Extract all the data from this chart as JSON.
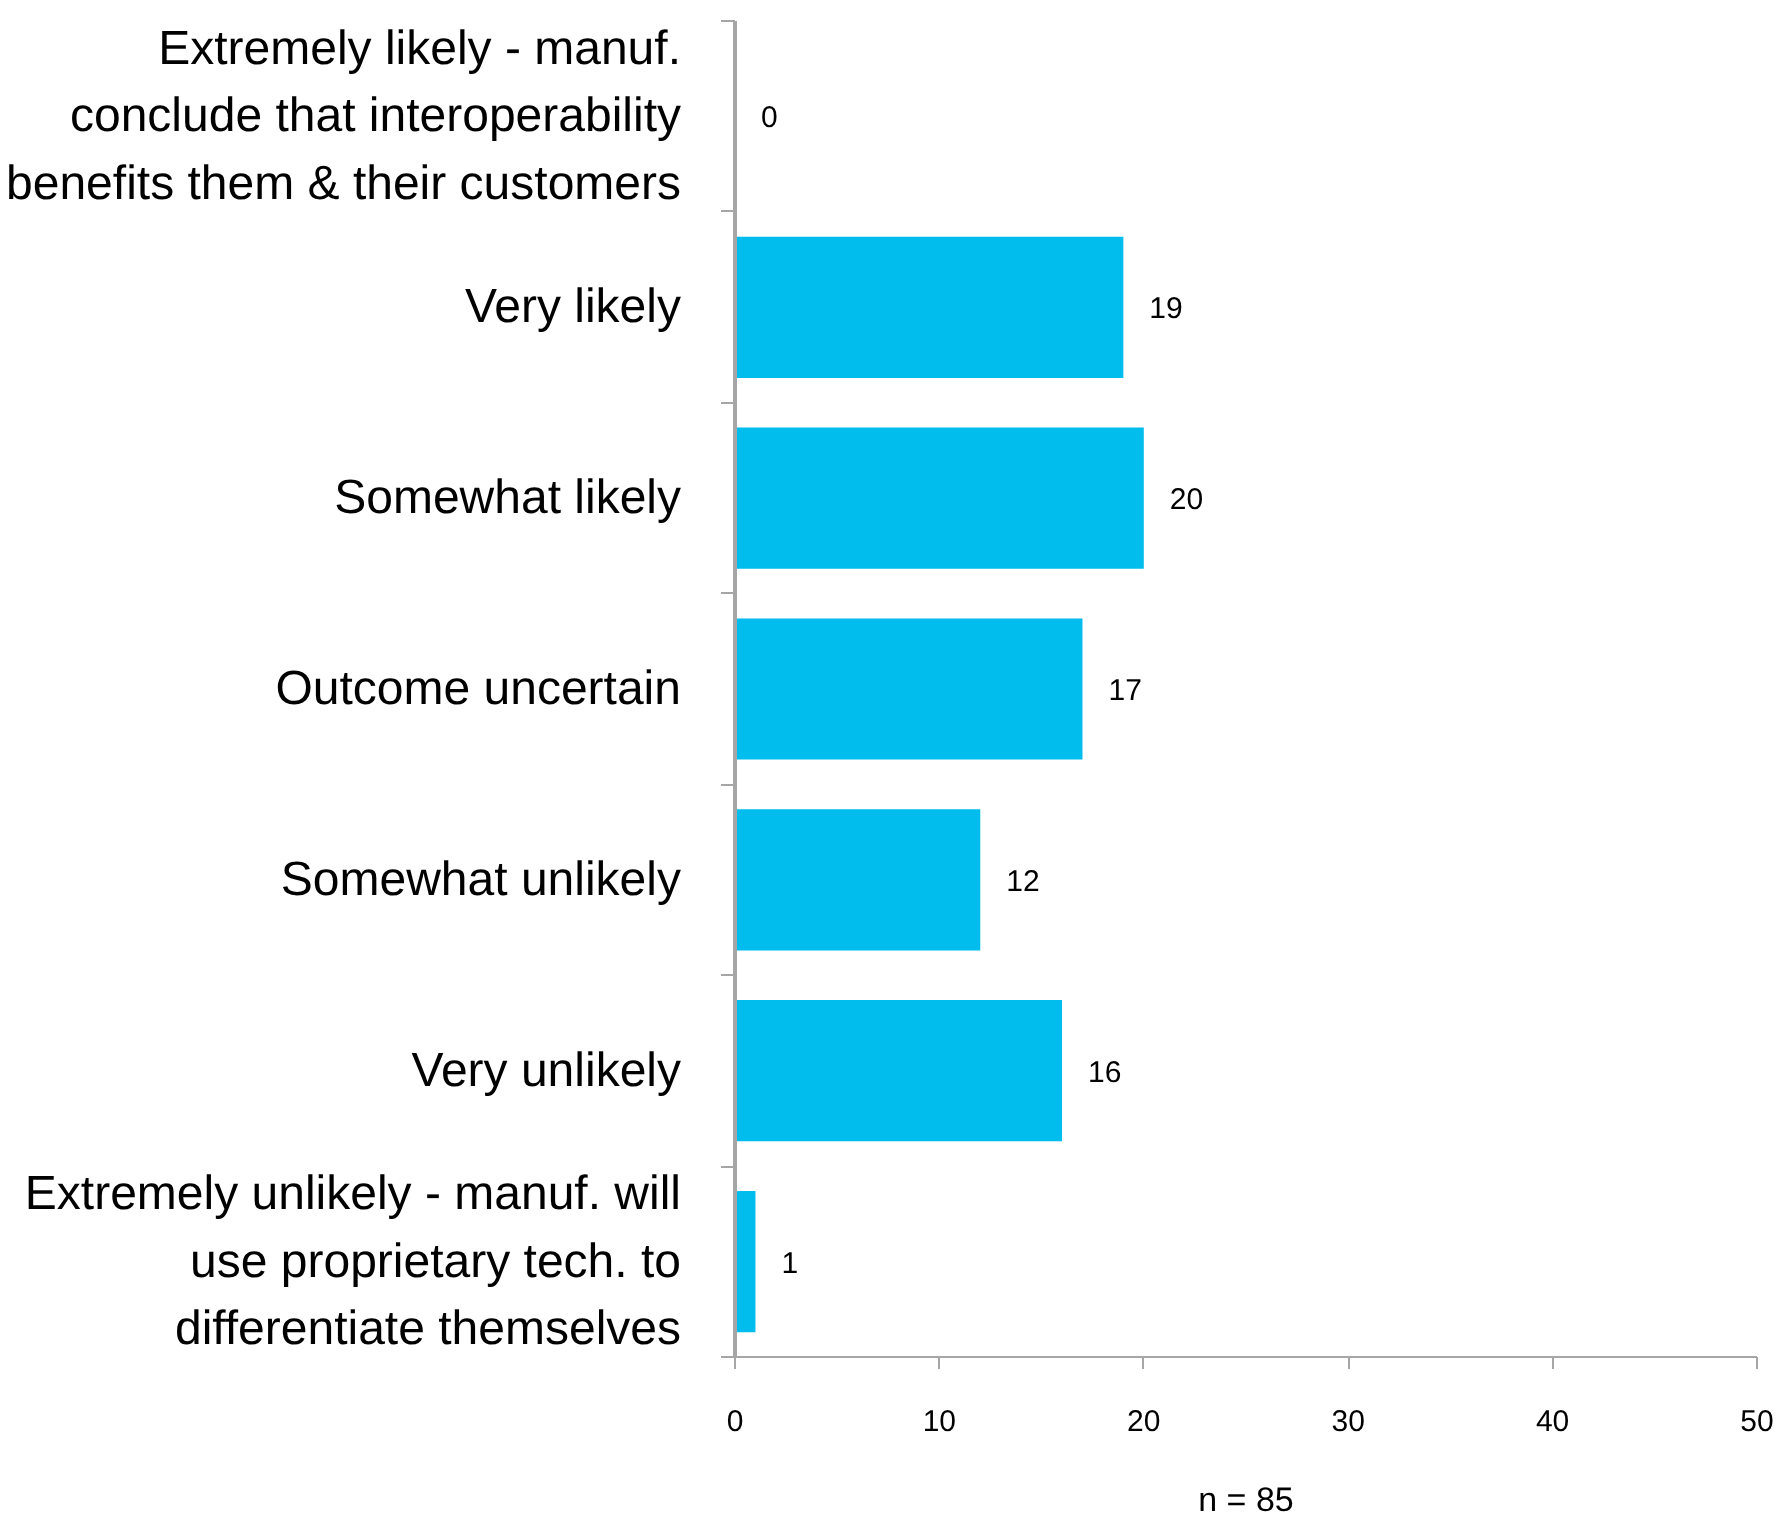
{
  "chart_data": {
    "type": "bar",
    "orientation": "horizontal",
    "categories": [
      "Extremely likely - manuf. conclude that interoperability benefits them & their customers",
      "Very likely",
      "Somewhat likely",
      "Outcome uncertain",
      "Somewhat unlikely",
      "Very unlikely",
      "Extremely unlikely - manuf. will use proprietary tech. to differentiate themselves"
    ],
    "values": [
      0,
      19,
      20,
      17,
      12,
      16,
      1
    ],
    "color": "#00bdee",
    "xlim": [
      0,
      50
    ],
    "xticks": [
      0,
      10,
      20,
      30,
      40,
      50
    ],
    "data_labels": true,
    "annotations": [
      "n = 85"
    ]
  }
}
